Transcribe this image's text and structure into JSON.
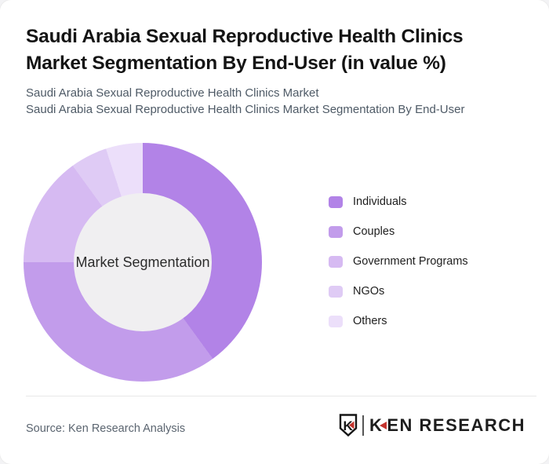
{
  "card": {
    "title": "Saudi Arabia Sexual Reproductive Health Clinics Market Segmentation By End-User (in value %)",
    "subtitle_line1": "Saudi Arabia Sexual Reproductive Health Clinics Market",
    "subtitle_line2": "Saudi Arabia Sexual Reproductive Health Clinics Market Segmentation By End-User"
  },
  "chart_data": {
    "type": "pie",
    "donut": true,
    "title": "Saudi Arabia Sexual Reproductive Health Clinics Market Segmentation By End-User (in value %)",
    "center_label": "Market Segmentation",
    "start_angle_deg": 0,
    "direction": "clockwise",
    "legend_position": "right",
    "units": "value %",
    "series": [
      {
        "name": "Individuals",
        "value": 40,
        "color": "#b283e7"
      },
      {
        "name": "Couples",
        "value": 35,
        "color": "#c29ceb"
      },
      {
        "name": "Government Programs",
        "value": 15,
        "color": "#d6baf2"
      },
      {
        "name": "NGOs",
        "value": 5,
        "color": "#dfcbf5"
      },
      {
        "name": "Others",
        "value": 5,
        "color": "#ecdffa"
      }
    ],
    "inner_circle_color": "#f0eff1"
  },
  "footer": {
    "source": "Source: Ken Research Analysis",
    "logo": {
      "emblem_letter": "K",
      "wordmark_k": "K",
      "wordmark_rest": "EN RESEARCH",
      "accent_color": "#c4342e",
      "text_color": "#1d1d1d"
    }
  }
}
